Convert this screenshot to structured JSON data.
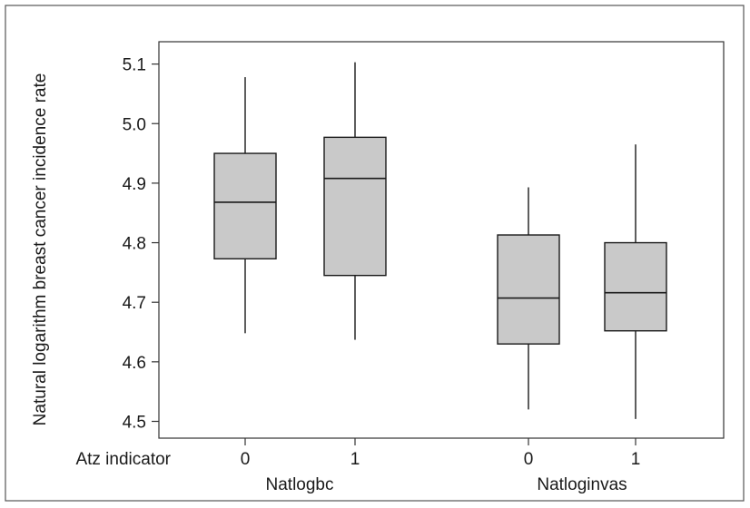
{
  "chart_data": {
    "type": "box",
    "ylabel": "Natural logarithm breast cancer incidence rate",
    "ylim": [
      4.47,
      5.14
    ],
    "yticks": [
      "4.5",
      "4.6",
      "4.7",
      "4.8",
      "4.9",
      "5.0",
      "5.1"
    ],
    "x_row_label": "Atz indicator",
    "groups": [
      {
        "name": "Natlogbc",
        "boxes": [
          {
            "label": "0",
            "min": 4.648,
            "q1": 4.773,
            "median": 4.868,
            "q3": 4.95,
            "max": 5.078
          },
          {
            "label": "1",
            "min": 4.637,
            "q1": 4.745,
            "median": 4.908,
            "q3": 4.977,
            "max": 5.103
          }
        ]
      },
      {
        "name": "Natloginvas",
        "boxes": [
          {
            "label": "0",
            "min": 4.52,
            "q1": 4.63,
            "median": 4.707,
            "q3": 4.813,
            "max": 4.893
          },
          {
            "label": "1",
            "min": 4.504,
            "q1": 4.652,
            "median": 4.716,
            "q3": 4.8,
            "max": 4.965
          }
        ]
      }
    ],
    "colors": {
      "box_fill": "#c9c9c9",
      "stroke": "#1a1a1a",
      "plot_background": "#ffffff",
      "frame": "#333333"
    },
    "grid": false
  }
}
